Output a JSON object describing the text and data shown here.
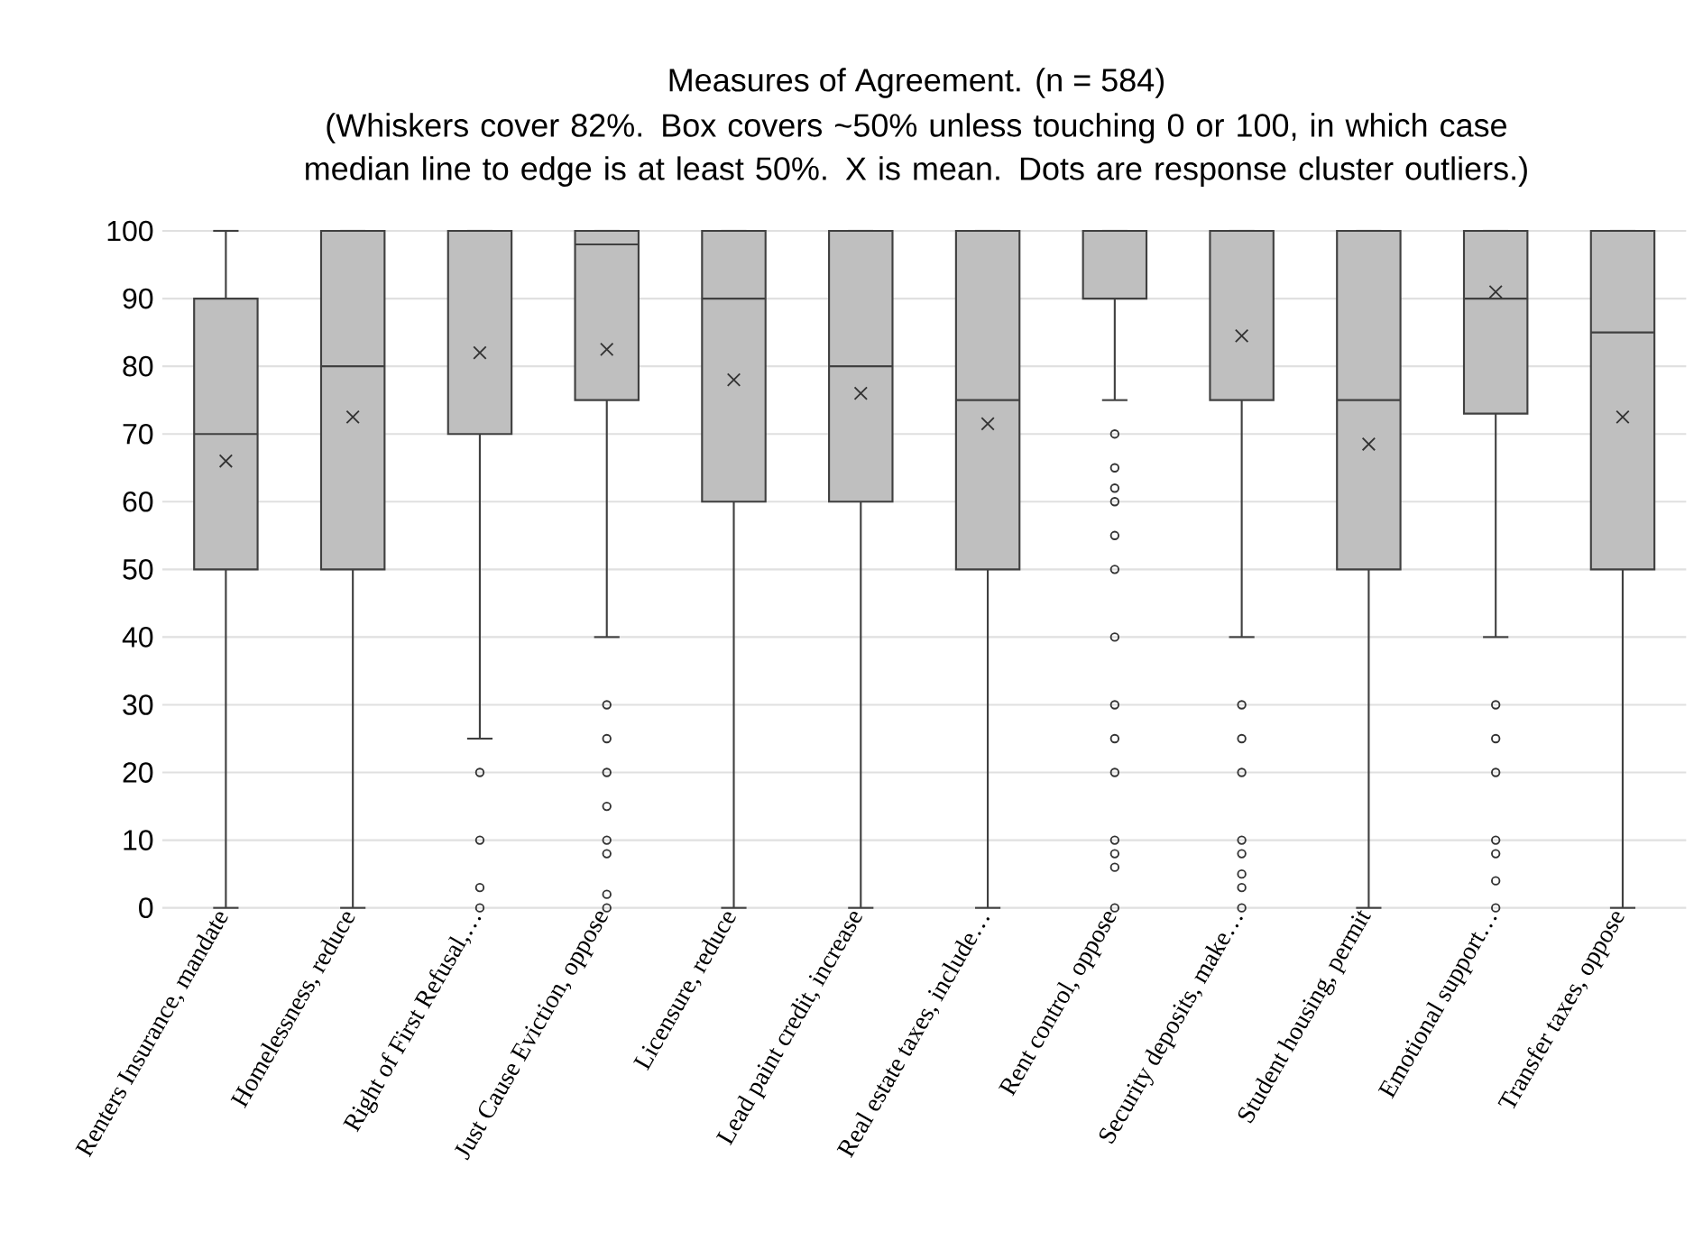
{
  "chart_data": {
    "type": "box",
    "title": "Measures of Agreement. (n = 584)",
    "subtitle": "(Whiskers cover 82%. Box covers ~50% unless touching 0 or 100, in which case median line to edge is at least 50%. X is mean. Dots are response cluster outliers.)",
    "categories": [
      "Renters Insurance, mandate",
      "Homelessness, reduce",
      "Right of First Refusal,…",
      "Just Cause Eviction, oppose",
      "Licensure, reduce",
      "Lead paint credit, increase",
      "Real estate taxes, include…",
      "Rent control, oppose",
      "Security deposits, make…",
      "Student housing, permit",
      "Emotional support…",
      "Transfer taxes, oppose"
    ],
    "color": "#bfbfbf",
    "boxes": [
      {
        "low": 0,
        "q1": 50,
        "median": 70,
        "q3": 90,
        "high": 100,
        "mean": 66
      },
      {
        "low": 0,
        "q1": 50,
        "median": 80,
        "q3": 100,
        "high": 100,
        "mean": 72.5
      },
      {
        "low": 25,
        "q1": 70,
        "median": 100,
        "q3": 100,
        "high": 100,
        "mean": 82,
        "outliers": [
          20,
          10,
          3,
          0
        ]
      },
      {
        "low": 40,
        "q1": 75,
        "median": 98,
        "q3": 100,
        "high": 100,
        "mean": 82.5,
        "outliers": [
          30,
          25,
          20,
          15,
          10,
          8,
          2,
          0
        ]
      },
      {
        "low": 0,
        "q1": 60,
        "median": 90,
        "q3": 100,
        "high": 100,
        "mean": 78
      },
      {
        "low": 0,
        "q1": 60,
        "median": 80,
        "q3": 100,
        "high": 100,
        "mean": 76
      },
      {
        "low": 0,
        "q1": 50,
        "median": 75,
        "q3": 100,
        "high": 100,
        "mean": 71.5
      },
      {
        "low": 75,
        "q1": 90,
        "median": 100,
        "q3": 100,
        "high": 100,
        "outliers": [
          70,
          65,
          62,
          60,
          55,
          50,
          40,
          30,
          25,
          20,
          10,
          8,
          6,
          0
        ]
      },
      {
        "low": 40,
        "q1": 75,
        "median": 100,
        "q3": 100,
        "high": 100,
        "mean": 84.5,
        "outliers": [
          30,
          25,
          20,
          10,
          8,
          5,
          3,
          0
        ]
      },
      {
        "low": 0,
        "q1": 50,
        "median": 75,
        "q3": 100,
        "high": 100,
        "mean": 68.5
      },
      {
        "low": 40,
        "q1": 73,
        "median": 90,
        "q3": 100,
        "high": 100,
        "mean": 91,
        "outliers": [
          30,
          25,
          20,
          10,
          8,
          4,
          0
        ]
      },
      {
        "low": 0,
        "q1": 50,
        "median": 85,
        "q3": 100,
        "high": 100,
        "mean": 72.5
      }
    ],
    "ylim": [
      0,
      100
    ],
    "yticks": [
      0,
      10,
      20,
      30,
      40,
      50,
      60,
      70,
      80,
      90,
      100
    ],
    "grid": "y"
  }
}
